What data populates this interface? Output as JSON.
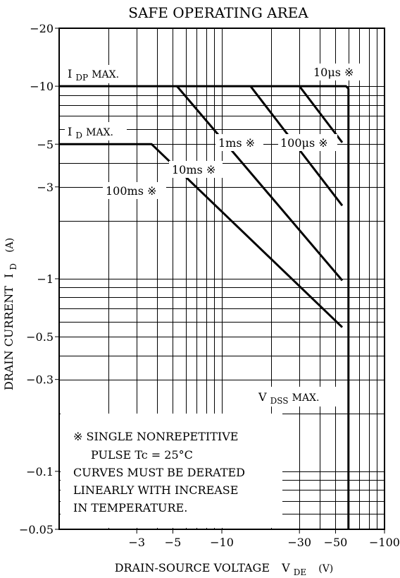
{
  "chart_data": {
    "type": "line",
    "title": "SAFE OPERATING AREA",
    "x_axis": {
      "label": "DRAIN-SOURCE VOLTAGE",
      "symbol": "V",
      "subscript": "DE",
      "unit": "(V)",
      "scale": "log",
      "range": [
        -1,
        -100
      ],
      "tick_labels": [
        {
          "value": -3,
          "label": "−3"
        },
        {
          "value": -5,
          "label": "−5"
        },
        {
          "value": -10,
          "label": "−10"
        },
        {
          "value": -30,
          "label": "−30"
        },
        {
          "value": -50,
          "label": "−50"
        },
        {
          "value": -100,
          "label": "−100"
        }
      ]
    },
    "y_axis": {
      "label": "DRAIN CURRENT",
      "symbol": "I",
      "subscript": "D",
      "unit": "(A)",
      "scale": "log",
      "range": [
        -0.05,
        -20
      ],
      "tick_labels": [
        {
          "value": -20,
          "label": "−20"
        },
        {
          "value": -10,
          "label": "−10"
        },
        {
          "value": -5,
          "label": "−5"
        },
        {
          "value": -3,
          "label": "−3"
        },
        {
          "value": -1,
          "label": "−1"
        },
        {
          "value": -0.5,
          "label": "−0.5"
        },
        {
          "value": -0.3,
          "label": "−0.3"
        },
        {
          "value": -0.1,
          "label": "−0.1"
        },
        {
          "value": -0.05,
          "label": "−0.05"
        }
      ]
    },
    "grid": true,
    "series": [
      {
        "name": "10μs ※",
        "points": [
          [
            -1,
            -10
          ],
          [
            -58,
            -10
          ],
          [
            -60,
            -9.7
          ]
        ]
      },
      {
        "name": "100μs ※",
        "points": [
          [
            -30,
            -10
          ],
          [
            -55,
            -5.1
          ]
        ]
      },
      {
        "name": "1ms ※",
        "points": [
          [
            -15,
            -10
          ],
          [
            -55,
            -2.4
          ]
        ]
      },
      {
        "name": "10ms ※",
        "points": [
          [
            -5.3,
            -10
          ],
          [
            -55,
            -0.98
          ]
        ]
      },
      {
        "name": "100ms ※",
        "points": [
          [
            -1,
            -5
          ],
          [
            -3.7,
            -5
          ],
          [
            -55,
            -0.56
          ]
        ]
      },
      {
        "name": "V_DSS MAX.",
        "points": [
          [
            -60,
            -9.7
          ],
          [
            -60,
            -0.05
          ]
        ]
      }
    ],
    "annotations": {
      "idp_max": {
        "main": "I",
        "sub": "DP",
        "rest": " MAX."
      },
      "id_max": {
        "main": "I",
        "sub": "D",
        "rest": " MAX."
      },
      "vdss_max": {
        "main": "V",
        "sub": "DSS",
        "rest": " MAX."
      },
      "label_10us": "10μs ※",
      "label_100us": "100μs ※",
      "label_1ms": "1ms ※",
      "label_10ms": "10ms ※",
      "label_100ms": "100ms ※",
      "notes": [
        "※ SINGLE NONREPETITIVE",
        "PULSE   Tc = 25°C",
        "CURVES MUST BE DERATED",
        "LINEARLY WITH INCREASE",
        "IN TEMPERATURE."
      ]
    }
  }
}
